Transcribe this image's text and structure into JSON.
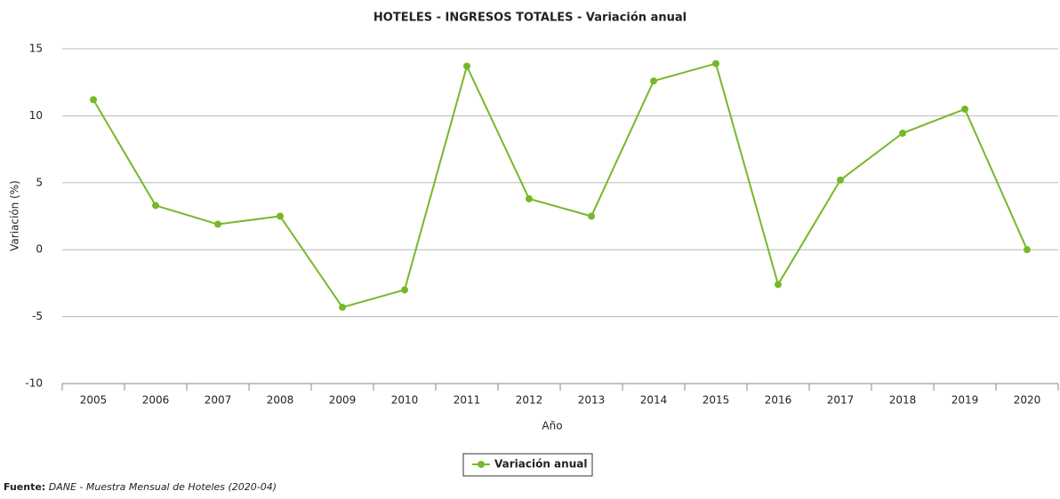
{
  "chart_data": {
    "type": "line",
    "title": "HOTELES - INGRESOS TOTALES - Variación anual",
    "xlabel": "Año",
    "ylabel": "Variación (%)",
    "categories": [
      "2005",
      "2006",
      "2007",
      "2008",
      "2009",
      "2010",
      "2011",
      "2012",
      "2013",
      "2014",
      "2015",
      "2016",
      "2017",
      "2018",
      "2019",
      "2020"
    ],
    "series": [
      {
        "name": "Variación anual",
        "color": "#76b82a",
        "values": [
          11.2,
          3.3,
          1.9,
          2.5,
          -4.3,
          -3.0,
          13.7,
          3.8,
          2.5,
          12.6,
          13.9,
          -2.6,
          5.2,
          8.7,
          10.5,
          0
        ]
      }
    ],
    "ylim": [
      -10,
      15
    ],
    "yticks": [
      -10,
      -5,
      0,
      5,
      10,
      15
    ],
    "grid": true,
    "legend": "bottom",
    "source": {
      "label": "Fuente:",
      "text": "DANE - Muestra Mensual de Hoteles (2020-04)"
    }
  }
}
